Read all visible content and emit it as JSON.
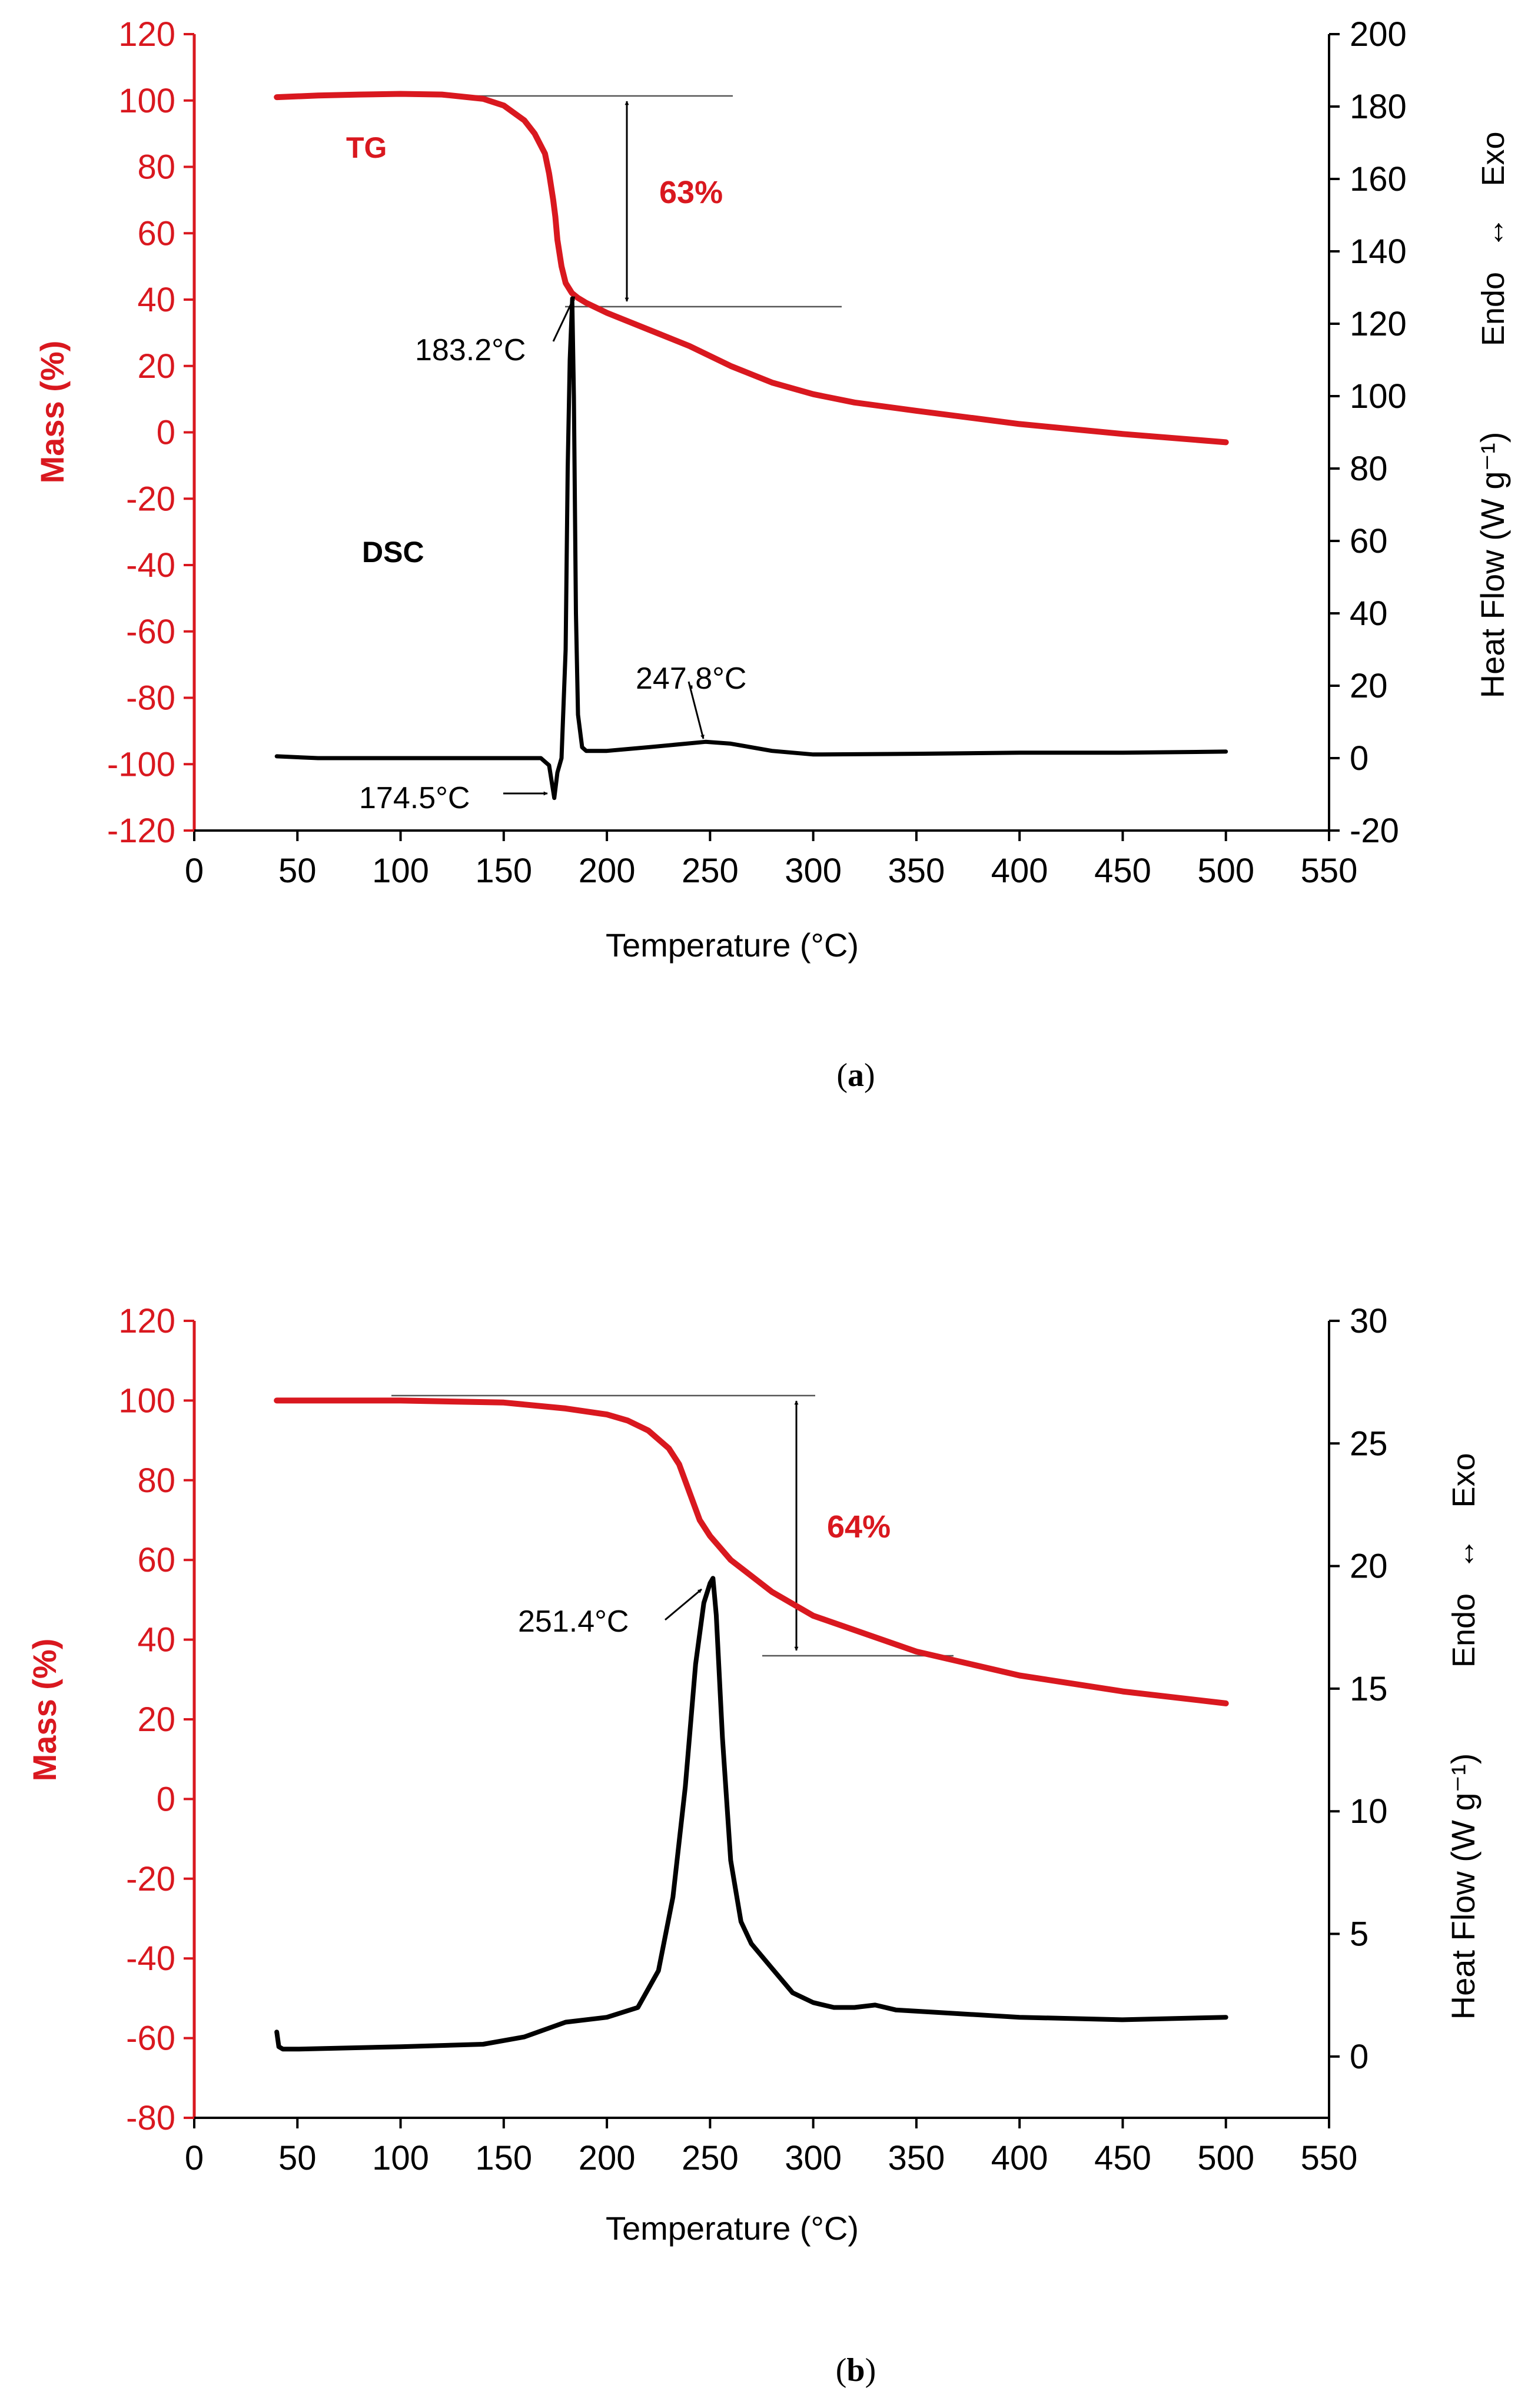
{
  "colors": {
    "tg": "#d9181f",
    "dsc": "#000000",
    "ref": "#555555"
  },
  "chart_data": [
    {
      "type": "line",
      "panel_label": "a",
      "xlabel": "Temperature (°C)",
      "ylabel_left": "Mass (%)",
      "ylabel_right": "Heat Flow (W g⁻¹)",
      "direction_label": {
        "top": "Exo",
        "bottom": "Endo",
        "arrow": "↔"
      },
      "xlim": [
        0,
        550
      ],
      "xticks": [
        0,
        50,
        100,
        150,
        200,
        250,
        300,
        350,
        400,
        450,
        500,
        550
      ],
      "ylim_left": [
        -120,
        120
      ],
      "yticks_left": [
        -120,
        -100,
        -80,
        -60,
        -40,
        -20,
        0,
        20,
        40,
        60,
        80,
        100,
        120
      ],
      "ylim_right": [
        -20,
        200
      ],
      "yticks_right": [
        -20,
        0,
        20,
        40,
        60,
        80,
        100,
        120,
        140,
        160,
        180,
        200
      ],
      "series": [
        {
          "name": "TG",
          "axis": "left",
          "x": [
            40,
            60,
            80,
            100,
            120,
            140,
            150,
            160,
            165,
            170,
            172,
            174,
            175,
            176,
            178,
            180,
            183,
            186,
            190,
            200,
            220,
            240,
            260,
            280,
            300,
            320,
            350,
            400,
            450,
            500
          ],
          "y": [
            101,
            101.5,
            101.8,
            102,
            101.8,
            100.5,
            98.5,
            94,
            90,
            84,
            78,
            70,
            65,
            58,
            50,
            45,
            42,
            40.5,
            39,
            36,
            31,
            26,
            20,
            15,
            11.5,
            9,
            6.5,
            2.5,
            -0.5,
            -3
          ]
        },
        {
          "name": "DSC",
          "axis": "right",
          "x": [
            40,
            60,
            100,
            150,
            168,
            172,
            174.5,
            176,
            178,
            180,
            181,
            182,
            183.2,
            184,
            185,
            186,
            188,
            190,
            200,
            220,
            247.8,
            260,
            280,
            300,
            350,
            400,
            450,
            500
          ],
          "y": [
            0.5,
            0,
            0,
            0,
            0,
            -2,
            -11,
            -4,
            0,
            30,
            80,
            110,
            127,
            100,
            40,
            12,
            3,
            2,
            2,
            3,
            4.5,
            4,
            2,
            1,
            1.2,
            1.5,
            1.5,
            1.8
          ]
        }
      ],
      "annotations": {
        "tg_label": "TG",
        "dsc_label": "DSC",
        "loss": "63%",
        "peak_high": "183.2°C",
        "peak_low": "174.5°C",
        "peak_mid": "247.8°C"
      }
    },
    {
      "type": "line",
      "panel_label": "b",
      "xlabel": "Temperature (°C)",
      "ylabel_left": "Mass (%)",
      "ylabel_right": "Heat Flow (W g⁻¹)",
      "direction_label": {
        "top": "Exo",
        "bottom": "Endo",
        "arrow": "↔"
      },
      "xlim": [
        0,
        550
      ],
      "xticks": [
        0,
        50,
        100,
        150,
        200,
        250,
        300,
        350,
        400,
        450,
        500,
        550
      ],
      "ylim_left": [
        -80,
        120
      ],
      "yticks_left": [
        -80,
        -60,
        -40,
        -20,
        0,
        20,
        40,
        60,
        80,
        100,
        120
      ],
      "ylim_right": [
        -2.5,
        30
      ],
      "yticks_right": [
        0,
        5,
        10,
        15,
        20,
        25,
        30
      ],
      "series": [
        {
          "name": "TG",
          "axis": "left",
          "x": [
            40,
            100,
            150,
            180,
            200,
            210,
            220,
            230,
            235,
            240,
            245,
            250,
            255,
            260,
            270,
            280,
            300,
            350,
            400,
            450,
            500
          ],
          "y": [
            100,
            100,
            99.5,
            98,
            96.5,
            95,
            92.5,
            88,
            84,
            77,
            70,
            66,
            63,
            60,
            56,
            52,
            46,
            37,
            31,
            27,
            24
          ]
        },
        {
          "name": "DSC",
          "axis": "right",
          "x": [
            40,
            41,
            43,
            50,
            100,
            140,
            160,
            180,
            200,
            215,
            225,
            232,
            238,
            243,
            247,
            250,
            251.4,
            253,
            256,
            260,
            265,
            270,
            280,
            290,
            300,
            310,
            320,
            330,
            340,
            360,
            400,
            450,
            500
          ],
          "y": [
            1.0,
            0.4,
            0.3,
            0.3,
            0.4,
            0.5,
            0.8,
            1.4,
            1.6,
            2.0,
            3.5,
            6.5,
            11.0,
            16.0,
            18.5,
            19.3,
            19.5,
            18.0,
            13.0,
            8.0,
            5.5,
            4.6,
            3.6,
            2.6,
            2.2,
            2.0,
            2.0,
            2.1,
            1.9,
            1.8,
            1.6,
            1.5,
            1.6
          ]
        }
      ],
      "annotations": {
        "loss": "64%",
        "peak_high": "251.4°C"
      }
    }
  ]
}
